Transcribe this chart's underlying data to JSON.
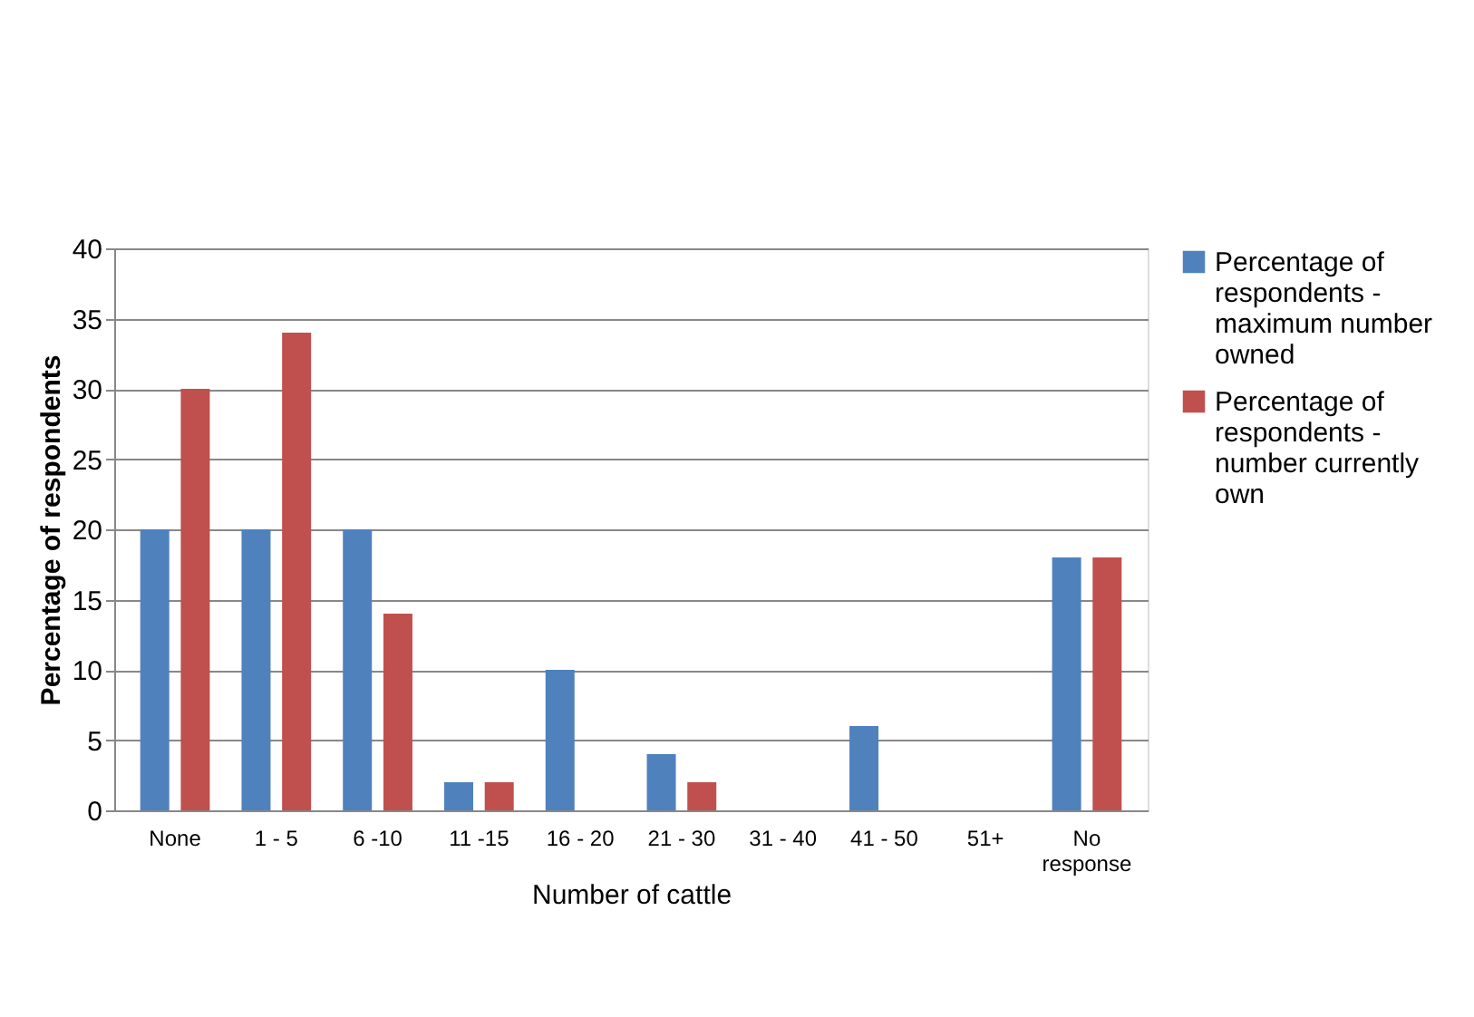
{
  "chart_data": {
    "type": "bar",
    "xlabel": "Number of cattle",
    "ylabel": "Percentage of respondents",
    "categories": [
      "None",
      "1 - 5",
      "6 -10",
      "11 -15",
      "16 - 20",
      "21 - 30",
      "31 - 40",
      "41 - 50",
      "51+",
      "No response"
    ],
    "series": [
      {
        "name": "Percentage of respondents - maximum number owned",
        "color": "#4f81bd",
        "values": [
          20,
          20,
          20,
          2,
          10,
          4,
          0,
          6,
          0,
          18
        ]
      },
      {
        "name": "Percentage of respondents - number currently own",
        "color": "#c0504d",
        "values": [
          30,
          34,
          14,
          2,
          0,
          2,
          0,
          0,
          0,
          18
        ]
      }
    ],
    "ylim": [
      0,
      40
    ],
    "yticks": [
      0,
      5,
      10,
      15,
      20,
      25,
      30,
      35,
      40
    ],
    "grid": "y",
    "legend": "right"
  }
}
